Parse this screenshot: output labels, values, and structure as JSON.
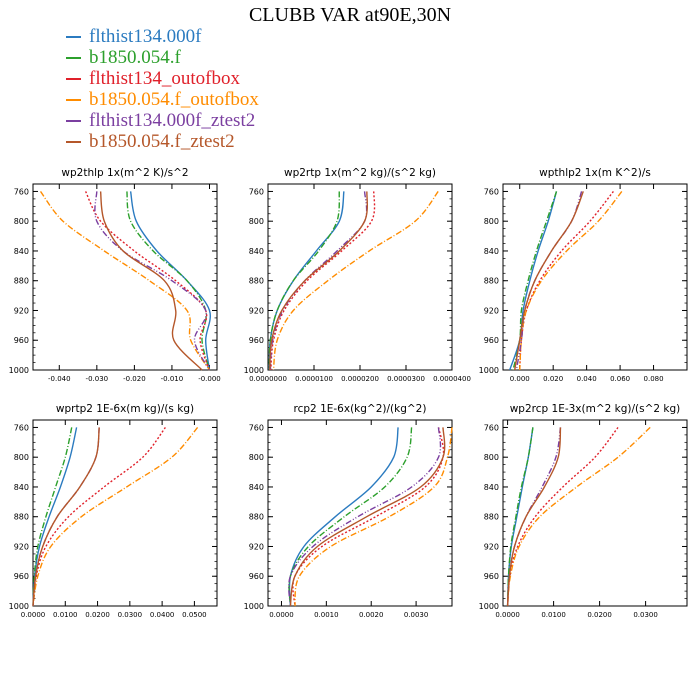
{
  "title": "CLUBB VAR at90E,30N",
  "legend": [
    {
      "name": "flthist134.000f",
      "color": "#2b7bc0",
      "dash": ""
    },
    {
      "name": "b1850.054.f",
      "color": "#2ca02c",
      "dash": "6,2,1,2"
    },
    {
      "name": "flthist134_outofbox",
      "color": "#e0202a",
      "dash": "2,2"
    },
    {
      "name": "b1850.054.f_outofbox",
      "color": "#ff8c00",
      "dash": "6,2,1,2"
    },
    {
      "name": "flthist134.000f_ztest2",
      "color": "#7b3fa0",
      "dash": "6,2,1,2,1,2"
    },
    {
      "name": "b1850.054.f_ztest2",
      "color": "#b5572a",
      "dash": ""
    }
  ],
  "chart_data": [
    {
      "type": "line",
      "title": "wp2thlp  1x(m^2 K)/s^2",
      "y_levels": [
        760,
        800,
        840,
        880,
        920,
        960,
        1000
      ],
      "xlim": [
        -0.047,
        0.002
      ],
      "ylim": [
        750,
        1000
      ],
      "xticks": [
        -0.04,
        -0.03,
        -0.02,
        -0.01,
        -0.0
      ],
      "xtick_labels": [
        "-0.040",
        "-0.030",
        "-0.020",
        "-0.010",
        "-0.000"
      ],
      "yticks": [
        760,
        800,
        840,
        880,
        920,
        960,
        1000
      ],
      "series": [
        {
          "values": [
            -0.021,
            -0.0195,
            -0.014,
            -0.006,
            0.0,
            -0.001,
            0.0
          ]
        },
        {
          "values": [
            -0.022,
            -0.021,
            -0.015,
            -0.006,
            -0.001,
            -0.002,
            0.0
          ]
        },
        {
          "values": [
            -0.033,
            -0.029,
            -0.02,
            -0.009,
            -0.001,
            -0.0025,
            0.0
          ]
        },
        {
          "values": [
            -0.045,
            -0.039,
            -0.028,
            -0.016,
            -0.006,
            -0.005,
            0.0
          ]
        },
        {
          "values": [
            -0.03,
            -0.03,
            -0.023,
            -0.01,
            -0.001,
            -0.004,
            0.0
          ]
        },
        {
          "values": [
            -0.029,
            -0.028,
            -0.023,
            -0.012,
            -0.009,
            -0.0095,
            -0.002
          ]
        }
      ]
    },
    {
      "type": "line",
      "title": "wp2rtp  1x(m^2 kg)/(s^2 kg)",
      "y_levels": [
        760,
        800,
        840,
        880,
        920,
        960,
        1000
      ],
      "xlim": [
        0,
        4e-05
      ],
      "ylim": [
        750,
        1000
      ],
      "xticks": [
        0,
        1e-05,
        2e-05,
        3e-05,
        4e-05
      ],
      "xtick_labels": [
        "0.0000000",
        "0.0000100",
        "0.0000200",
        "0.0000300",
        "0.0000400"
      ],
      "yticks": [
        760,
        800,
        840,
        880,
        920,
        960,
        1000
      ],
      "series": [
        {
          "values": [
            1.65e-05,
            1.55e-05,
            1.05e-05,
            5.5e-06,
            2e-06,
            5e-07,
            3e-07
          ]
        },
        {
          "values": [
            1.55e-05,
            1.5e-05,
            1.1e-05,
            5.5e-06,
            2e-06,
            5e-07,
            3e-07
          ]
        },
        {
          "values": [
            2.3e-05,
            2.25e-05,
            1.6e-05,
            8.5e-06,
            3.5e-06,
            1.2e-06,
            6e-07
          ]
        },
        {
          "values": [
            3.7e-05,
            3.2e-05,
            2.2e-05,
            1.3e-05,
            5.5e-06,
            2e-06,
            1.2e-06
          ]
        },
        {
          "values": [
            2.1e-05,
            2.1e-05,
            1.5e-05,
            8e-06,
            3.2e-06,
            1e-06,
            5e-07
          ]
        },
        {
          "values": [
            2.15e-05,
            2.1e-05,
            1.55e-05,
            8e-06,
            3e-06,
            8e-07,
            4e-07
          ]
        }
      ]
    },
    {
      "type": "line",
      "title": "wpthlp2  1x(m K^2)/s",
      "y_levels": [
        760,
        800,
        840,
        880,
        920,
        960,
        1000
      ],
      "xlim": [
        -0.01,
        0.1
      ],
      "ylim": [
        750,
        1000
      ],
      "xticks": [
        0,
        0.02,
        0.04,
        0.06,
        0.08
      ],
      "xtick_labels": [
        "0.000",
        "0.020",
        "0.040",
        "0.060",
        "0.080"
      ],
      "yticks": [
        760,
        800,
        840,
        880,
        920,
        960,
        1000
      ],
      "series": [
        {
          "values": [
            0.022,
            0.017,
            0.011,
            0.006,
            0.002,
            0.0,
            -0.006
          ]
        },
        {
          "values": [
            0.022,
            0.016,
            0.01,
            0.005,
            0.001,
            0.0,
            -0.004
          ]
        },
        {
          "values": [
            0.056,
            0.042,
            0.025,
            0.012,
            0.004,
            0.001,
            0.0
          ]
        },
        {
          "values": [
            0.061,
            0.047,
            0.028,
            0.013,
            0.004,
            0.001,
            0.0
          ]
        },
        {
          "values": [
            0.037,
            0.031,
            0.019,
            0.009,
            0.003,
            0.001,
            -0.002
          ]
        },
        {
          "values": [
            0.038,
            0.031,
            0.019,
            0.009,
            0.003,
            0.0,
            -0.003
          ]
        }
      ]
    },
    {
      "type": "line",
      "title": "wprtp2  1E-6x(m kg)/(s kg)",
      "y_levels": [
        760,
        800,
        840,
        880,
        920,
        960,
        1000
      ],
      "xlim": [
        0,
        0.057
      ],
      "ylim": [
        750,
        1000
      ],
      "xticks": [
        0,
        0.01,
        0.02,
        0.03,
        0.04,
        0.05
      ],
      "xtick_labels": [
        "0.0000",
        "0.0100",
        "0.0200",
        "0.0300",
        "0.0400",
        "0.0500"
      ],
      "yticks": [
        760,
        800,
        840,
        880,
        920,
        960,
        1000
      ],
      "series": [
        {
          "values": [
            0.0135,
            0.0115,
            0.0085,
            0.005,
            0.002,
            0.0005,
            0.0
          ]
        },
        {
          "values": [
            0.012,
            0.01,
            0.007,
            0.004,
            0.0015,
            0.0004,
            0.0
          ]
        },
        {
          "values": [
            0.041,
            0.034,
            0.022,
            0.011,
            0.004,
            0.001,
            0.0
          ]
        },
        {
          "values": [
            0.051,
            0.043,
            0.029,
            0.015,
            0.0055,
            0.0015,
            0.0
          ]
        },
        {
          "values": [
            0.0205,
            0.0195,
            0.0145,
            0.0075,
            0.003,
            0.0008,
            0.0
          ]
        },
        {
          "values": [
            0.0205,
            0.0195,
            0.0145,
            0.0075,
            0.003,
            0.0008,
            0.0
          ]
        }
      ]
    },
    {
      "type": "line",
      "title": "rcp2  1E-6x(kg^2)/(kg^2)",
      "y_levels": [
        760,
        800,
        840,
        880,
        920,
        960,
        1000
      ],
      "xlim": [
        -0.0003,
        0.0038
      ],
      "ylim": [
        750,
        1000
      ],
      "xticks": [
        0,
        0.001,
        0.002,
        0.003
      ],
      "xtick_labels": [
        "0.0000",
        "0.0010",
        "0.0020",
        "0.0030"
      ],
      "yticks": [
        760,
        800,
        840,
        880,
        920,
        960,
        1000
      ],
      "series": [
        {
          "values": [
            0.0026,
            0.0025,
            0.002,
            0.0012,
            0.0005,
            0.0002,
            0.0002
          ]
        },
        {
          "values": [
            0.0029,
            0.0028,
            0.0023,
            0.0014,
            0.0006,
            0.0002,
            0.0002
          ]
        },
        {
          "values": [
            0.0035,
            0.0036,
            0.0032,
            0.0021,
            0.0009,
            0.0003,
            0.0003
          ]
        },
        {
          "values": [
            0.0038,
            0.0037,
            0.0034,
            0.0024,
            0.0011,
            0.0004,
            0.0003
          ]
        },
        {
          "values": [
            0.0035,
            0.0035,
            0.0029,
            0.0017,
            0.0007,
            0.0002,
            0.0002
          ]
        },
        {
          "values": [
            0.0036,
            0.0036,
            0.0031,
            0.0019,
            0.0008,
            0.0003,
            0.0002
          ]
        }
      ]
    },
    {
      "type": "line",
      "title": "wp2rcp  1E-3x(m^2 kg)/(s^2 kg)",
      "y_levels": [
        760,
        800,
        840,
        880,
        920,
        960,
        1000
      ],
      "xlim": [
        -0.001,
        0.039
      ],
      "ylim": [
        750,
        1000
      ],
      "xticks": [
        0,
        0.01,
        0.02,
        0.03
      ],
      "xtick_labels": [
        "0.0000",
        "0.0100",
        "0.0200",
        "0.0300"
      ],
      "yticks": [
        760,
        800,
        840,
        880,
        920,
        960,
        1000
      ],
      "series": [
        {
          "values": [
            0.0055,
            0.0045,
            0.0032,
            0.002,
            0.0008,
            0.0002,
            0.0
          ]
        },
        {
          "values": [
            0.0055,
            0.0045,
            0.003,
            0.0018,
            0.0007,
            0.0002,
            0.0
          ]
        },
        {
          "values": [
            0.024,
            0.019,
            0.012,
            0.006,
            0.0022,
            0.0005,
            0.0
          ]
        },
        {
          "values": [
            0.031,
            0.024,
            0.015,
            0.007,
            0.0025,
            0.0006,
            0.0
          ]
        },
        {
          "values": [
            0.0115,
            0.0105,
            0.0075,
            0.004,
            0.0015,
            0.0004,
            0.0
          ]
        },
        {
          "values": [
            0.0115,
            0.011,
            0.008,
            0.004,
            0.0015,
            0.0004,
            0.0
          ]
        }
      ]
    }
  ]
}
